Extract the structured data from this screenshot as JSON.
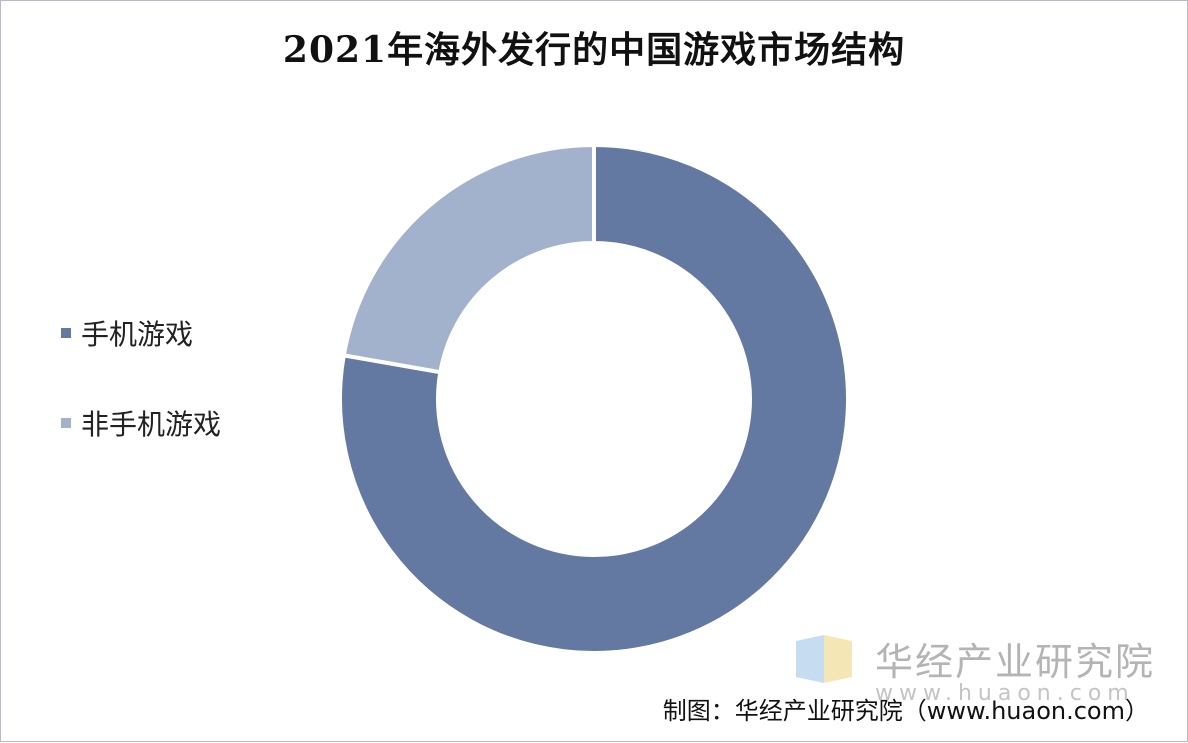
{
  "chart_data": {
    "type": "pie",
    "title": "2021年海外发行的中国游戏市场结构",
    "series": [
      {
        "name": "手机游戏",
        "value": 77.75,
        "color": "#6479a2"
      },
      {
        "name": "非手机游戏",
        "value": 22.25,
        "color": "#a3b2cc"
      }
    ],
    "legend_position": "left"
  },
  "watermark": {
    "name": "华经产业研究院",
    "url": "www.huaon.com"
  },
  "source_note": "制图：华经产业研究院（www.huaon.com）"
}
